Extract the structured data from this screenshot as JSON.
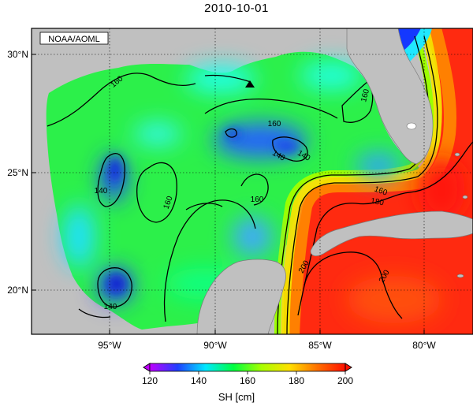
{
  "title": "2010-10-01",
  "credit": "NOAA/AOML",
  "axes": {
    "lat_ticks": [
      "30°N",
      "25°N",
      "20°N"
    ],
    "lon_ticks": [
      "95°W",
      "90°W",
      "85°W",
      "80°W"
    ]
  },
  "colorbar": {
    "title": "SH [cm]",
    "ticks": [
      "120",
      "140",
      "160",
      "180",
      "200"
    ],
    "min": 120,
    "max": 200,
    "stops": [
      "#c000ff",
      "#2040ff",
      "#00e8ff",
      "#00ff40",
      "#a8ff00",
      "#ffe000",
      "#ff7000",
      "#ff1000"
    ]
  },
  "contour_labels": [
    "160",
    "160",
    "160",
    "140",
    "140",
    "140",
    "160",
    "160",
    "160",
    "180",
    "200",
    "200",
    "140"
  ],
  "marker": {
    "type": "triangle",
    "lat": 28.7,
    "lon": -88.4
  },
  "colors": {
    "land": "#c0c0c0",
    "frame": "#000000"
  }
}
